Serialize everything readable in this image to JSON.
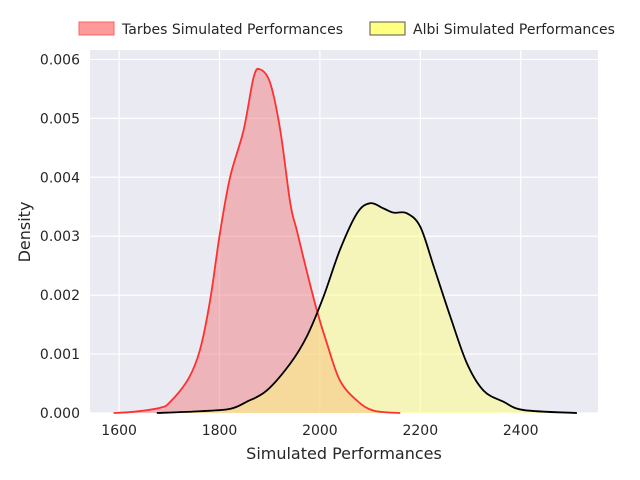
{
  "chart_data": {
    "type": "area",
    "title": "",
    "xlabel": "Simulated Performances",
    "ylabel": "Density",
    "xlim": [
      1542,
      2554
    ],
    "ylim": [
      0,
      0.00616
    ],
    "xticks": [
      1600,
      1800,
      2000,
      2200,
      2400
    ],
    "xtick_labels": [
      "1600",
      "1800",
      "2000",
      "2200",
      "2400"
    ],
    "yticks": [
      0,
      0.001,
      0.002,
      0.003,
      0.004,
      0.005,
      0.006
    ],
    "ytick_labels": [
      "0.000",
      "0.001",
      "0.002",
      "0.003",
      "0.004",
      "0.005",
      "0.006"
    ],
    "grid": true,
    "legend_position": "top-center-outside",
    "series": [
      {
        "name": "Tarbes Simulated Performances",
        "line_color": "#ff3030",
        "fill_color": "#f08080",
        "legend_fill": "#ff9a9a",
        "x": [
          1589,
          1628,
          1682,
          1702,
          1738,
          1761,
          1781,
          1801,
          1821,
          1848,
          1868,
          1881,
          1901,
          1921,
          1941,
          1954,
          1974,
          1994,
          2014,
          2040,
          2074,
          2107,
          2160
        ],
        "y": [
          0,
          2e-05,
          9e-05,
          0.00019,
          0.00058,
          0.00107,
          0.0019,
          0.00306,
          0.004,
          0.0048,
          0.0057,
          0.00583,
          0.0056,
          0.0048,
          0.00356,
          0.0031,
          0.0024,
          0.00174,
          0.00118,
          0.00055,
          0.00021,
          4e-05,
          0
        ]
      },
      {
        "name": "Albi Simulated Performances",
        "line_color": "#000000",
        "fill_color": "#ffff80",
        "legend_fill": "#ffff80",
        "x": [
          1675,
          1761,
          1821,
          1854,
          1894,
          1941,
          1974,
          2007,
          2040,
          2074,
          2100,
          2127,
          2147,
          2173,
          2200,
          2227,
          2260,
          2293,
          2326,
          2366,
          2406,
          2512
        ],
        "y": [
          0,
          3e-05,
          7e-05,
          0.00019,
          0.00038,
          0.00084,
          0.0013,
          0.00197,
          0.00277,
          0.00339,
          0.00356,
          0.00347,
          0.0034,
          0.00339,
          0.00316,
          0.00248,
          0.00163,
          0.00084,
          0.00038,
          0.00019,
          5e-05,
          0
        ]
      }
    ]
  }
}
